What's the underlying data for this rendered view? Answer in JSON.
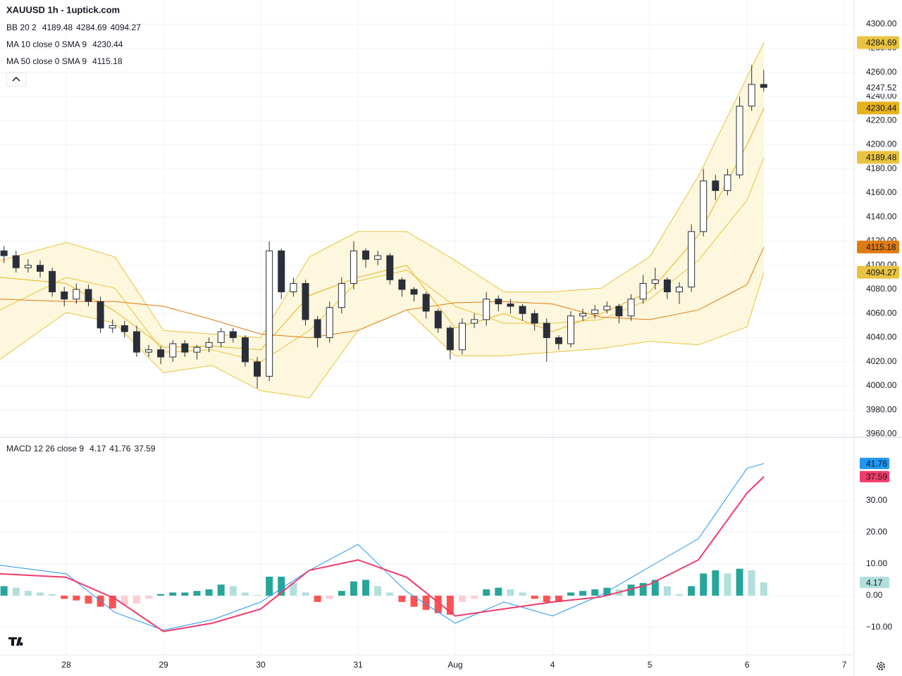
{
  "header": {
    "title": "XAUUSD 1h - 1uptick.com"
  },
  "chart_data": [
    {
      "type": "candlestick",
      "xlim": [
        -0.681,
        8.101
      ],
      "ylim": [
        3958,
        4320
      ],
      "xticks": [
        {
          "value": 0,
          "label": "28"
        },
        {
          "value": 1,
          "label": "29"
        },
        {
          "value": 2,
          "label": "30"
        },
        {
          "value": 3,
          "label": "31"
        },
        {
          "value": 4,
          "label": "Aug"
        },
        {
          "value": 5,
          "label": "4"
        },
        {
          "value": 6,
          "label": "5"
        },
        {
          "value": 7,
          "label": "6"
        },
        {
          "value": 8,
          "label": "7"
        }
      ],
      "yticks": [
        {
          "value": 4300,
          "label": "4300.00"
        },
        {
          "value": 4280,
          "label": "4280.00"
        },
        {
          "value": 4260,
          "label": "4260.00"
        },
        {
          "value": 4240,
          "label": "4240.00"
        },
        {
          "value": 4220,
          "label": "4220.00"
        },
        {
          "value": 4200,
          "label": "4200.00"
        },
        {
          "value": 4180,
          "label": "4180.00"
        },
        {
          "value": 4160,
          "label": "4160.00"
        },
        {
          "value": 4140,
          "label": "4140.00"
        },
        {
          "value": 4120,
          "label": "4120.00"
        },
        {
          "value": 4100,
          "label": "4100.00"
        },
        {
          "value": 4080,
          "label": "4080.00"
        },
        {
          "value": 4060,
          "label": "4060.00"
        },
        {
          "value": 4040,
          "label": "4040.00"
        },
        {
          "value": 4020,
          "label": "4020.00"
        },
        {
          "value": 4000,
          "label": "4000.00"
        },
        {
          "value": 3980,
          "label": "3980.00"
        },
        {
          "value": 3960,
          "label": "3960.00"
        }
      ],
      "grid": true,
      "up_color": "#ffffff",
      "down_color": "#2a2e39",
      "wick_color": "#2a2e39",
      "x": [
        -0.64,
        -0.516,
        -0.392,
        -0.268,
        -0.144,
        -0.02,
        0.104,
        0.228,
        0.352,
        0.476,
        0.6,
        0.724,
        0.848,
        0.972,
        1.096,
        1.22,
        1.344,
        1.468,
        1.592,
        1.716,
        1.84,
        1.964,
        2.088,
        2.212,
        2.336,
        2.46,
        2.584,
        2.708,
        2.832,
        2.956,
        3.08,
        3.204,
        3.328,
        3.452,
        3.576,
        3.7,
        3.824,
        3.948,
        4.072,
        4.196,
        4.32,
        4.444,
        4.568,
        4.692,
        4.816,
        4.94,
        5.064,
        5.188,
        5.312,
        5.436,
        5.56,
        5.684,
        5.808,
        5.932,
        6.056,
        6.18,
        6.304,
        6.428,
        6.552,
        6.676,
        6.8,
        6.924,
        7.048,
        7.172
      ],
      "open": [
        4112,
        4108,
        4098,
        4100,
        4095,
        4078,
        4072,
        4080,
        4070,
        4048,
        4050,
        4045,
        4028,
        4030,
        4024,
        4035,
        4028,
        4032,
        4036,
        4045,
        4040,
        4020,
        4008,
        4112,
        4078,
        4085,
        4055,
        4040,
        4065,
        4085,
        4112,
        4105,
        4108,
        4088,
        4080,
        4076,
        4062,
        4048,
        4030,
        4052,
        4055,
        4072,
        4068,
        4066,
        4060,
        4052,
        4040,
        4035,
        4058,
        4060,
        4063,
        4066,
        4058,
        4072,
        4085,
        4088,
        4078,
        4082,
        4128,
        4170,
        4162,
        4175,
        4232,
        4250
      ],
      "high": [
        4116,
        4112,
        4105,
        4104,
        4098,
        4082,
        4085,
        4084,
        4074,
        4055,
        4054,
        4050,
        4034,
        4033,
        4038,
        4038,
        4034,
        4040,
        4048,
        4048,
        4042,
        4024,
        4120,
        4114,
        4090,
        4088,
        4058,
        4070,
        4090,
        4120,
        4114,
        4112,
        4110,
        4090,
        4082,
        4078,
        4064,
        4050,
        4056,
        4060,
        4078,
        4075,
        4072,
        4068,
        4063,
        4056,
        4042,
        4062,
        4064,
        4067,
        4070,
        4068,
        4076,
        4092,
        4098,
        4090,
        4086,
        4134,
        4180,
        4175,
        4180,
        4240,
        4266,
        4262
      ],
      "low": [
        4102,
        4094,
        4094,
        4090,
        4074,
        4066,
        4068,
        4066,
        4044,
        4044,
        4040,
        4024,
        4024,
        4018,
        4020,
        4024,
        4022,
        4028,
        4032,
        4036,
        4016,
        3998,
        4004,
        4072,
        4074,
        4050,
        4032,
        4036,
        4060,
        4080,
        4098,
        4100,
        4084,
        4074,
        4070,
        4056,
        4044,
        4022,
        4026,
        4048,
        4050,
        4062,
        4060,
        4054,
        4046,
        4020,
        4030,
        4032,
        4054,
        4056,
        4060,
        4052,
        4054,
        4068,
        4080,
        4072,
        4068,
        4078,
        4124,
        4154,
        4158,
        4172,
        4228,
        4244
      ],
      "close": [
        4108,
        4098,
        4100,
        4095,
        4078,
        4072,
        4080,
        4070,
        4048,
        4050,
        4045,
        4028,
        4030,
        4024,
        4035,
        4028,
        4032,
        4036,
        4045,
        4040,
        4020,
        4008,
        4112,
        4078,
        4085,
        4055,
        4040,
        4065,
        4085,
        4112,
        4105,
        4108,
        4088,
        4080,
        4076,
        4062,
        4048,
        4030,
        4052,
        4055,
        4072,
        4068,
        4066,
        4060,
        4052,
        4040,
        4035,
        4058,
        4060,
        4063,
        4066,
        4058,
        4072,
        4085,
        4088,
        4078,
        4082,
        4128,
        4170,
        4162,
        4175,
        4232,
        4250,
        4247.52
      ],
      "line_x": [
        -0.681,
        0,
        0.5,
        1,
        1.5,
        2,
        2.5,
        3,
        3.5,
        4,
        4.5,
        5,
        5.5,
        6,
        6.5,
        7,
        7.174
      ],
      "bb": {
        "name": "BB 20 2",
        "color": "#e9c33f",
        "fill": "#fdf7dd",
        "basis": [
          4063,
          4090,
          4081,
          4028,
          4030,
          4020,
          4046,
          4087,
          4096,
          4066,
          4052,
          4052,
          4055,
          4072,
          4104,
          4154,
          4189.48
        ],
        "upper": [
          4104,
          4119,
          4107,
          4046,
          4043,
          4040,
          4107,
          4128,
          4128,
          4104,
          4078,
          4078,
          4081,
          4107,
          4174,
          4256,
          4284.69
        ],
        "lower": [
          4022,
          4061,
          4052,
          4011,
          4017,
          3996,
          3990,
          4046,
          4063,
          4025,
          4025,
          4028,
          4031,
          4037,
          4034,
          4049,
          4094.27
        ]
      },
      "mas": [
        {
          "name": "MA 10 close 0 SMA 9",
          "color": "#e6b21c",
          "values": [
            4090,
            4085,
            4062,
            4032,
            4033,
            4030,
            4075,
            4090,
            4100,
            4048,
            4060,
            4045,
            4060,
            4078,
            4125,
            4200,
            4230.44
          ]
        },
        {
          "name": "MA 50 close 0 SMA 9",
          "color": "#e07b10",
          "values": [
            4072,
            4070,
            4070,
            4066,
            4055,
            4043,
            4040,
            4046,
            4063,
            4069,
            4070,
            4068,
            4057,
            4055,
            4063,
            4084,
            4115.18
          ]
        }
      ]
    },
    {
      "type": "macd",
      "name": "MACD 12 26 close 9",
      "ylim": [
        -18.7,
        49.8
      ],
      "yticks": [
        {
          "value": 30,
          "label": "30.00"
        },
        {
          "value": 20,
          "label": "20.00"
        },
        {
          "value": 10,
          "label": "10.00"
        },
        {
          "value": 0,
          "label": "0.00"
        },
        {
          "value": -10,
          "label": "−10.00"
        }
      ],
      "hist_colors": [
        "#26a69a",
        "#b2dfdb",
        "#ff5252",
        "#ffcdd2"
      ],
      "histogram": [
        3,
        2.5,
        1.5,
        1,
        0.5,
        -1,
        -1.5,
        -2.5,
        -3.5,
        -4,
        -3,
        -2.5,
        -1,
        0.5,
        1,
        1,
        1.5,
        2,
        3.5,
        3,
        1,
        0.2,
        6,
        6,
        4,
        1,
        -2,
        -1,
        1.5,
        4.5,
        5,
        3,
        1,
        -2,
        -3.5,
        -4.5,
        -5.5,
        -6,
        -2,
        -1,
        2,
        2.5,
        2,
        1,
        -1,
        -2,
        -2,
        1,
        1.5,
        2,
        2.5,
        2,
        3.5,
        4,
        5,
        3,
        0.5,
        3,
        7,
        8,
        7,
        8.5,
        8,
        4.17
      ],
      "macd": {
        "color": "#2196f3",
        "values": [
          9.6,
          6.9,
          -5.3,
          -10.9,
          -7.6,
          -2,
          8,
          16.2,
          1.3,
          -8.7,
          -2,
          -6.4,
          0.2,
          9.1,
          18,
          40.2,
          41.76
        ]
      },
      "signal": {
        "color": "#f23b6b",
        "values": [
          6.9,
          5.8,
          -0.9,
          -11.3,
          -8.7,
          -4.2,
          8,
          11.3,
          5.8,
          -6.4,
          -4.2,
          -2,
          -0.4,
          3.6,
          11.3,
          32.4,
          37.59
        ]
      }
    }
  ]
}
